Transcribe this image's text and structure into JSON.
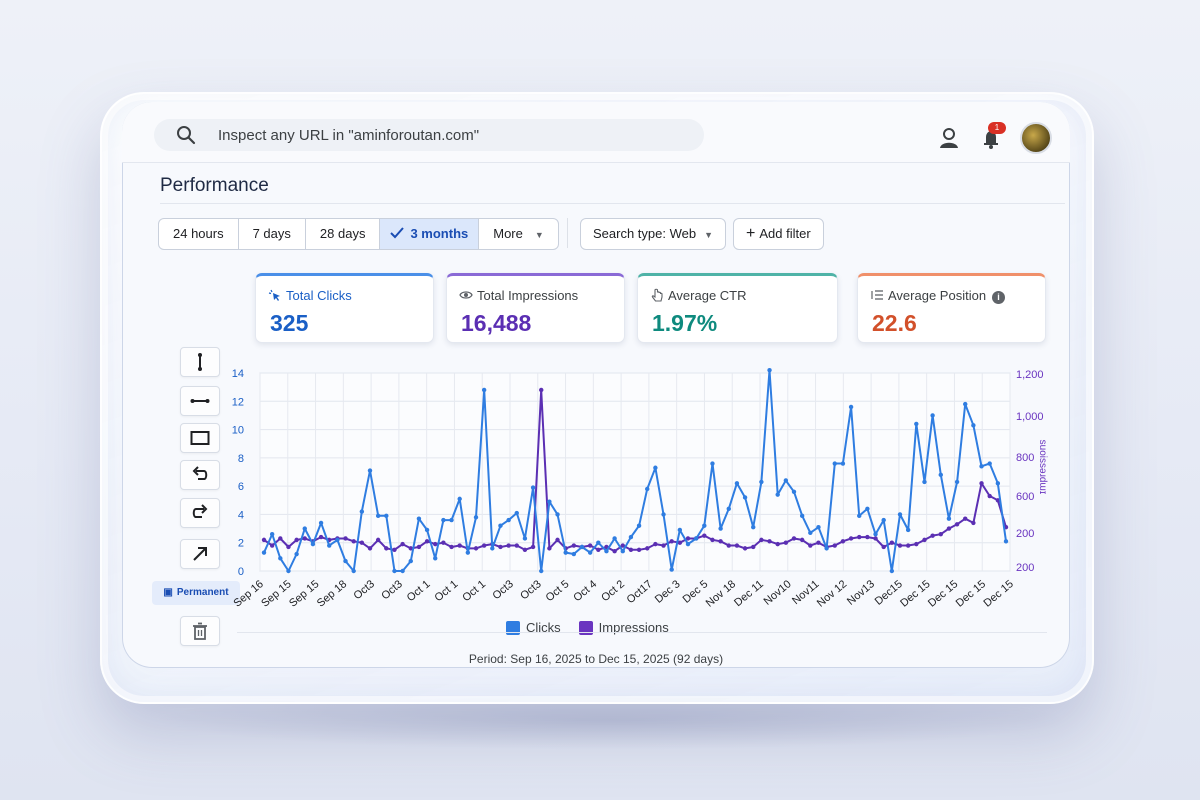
{
  "search": {
    "placeholder": "Inspect any URL in \"aminforoutan.com\""
  },
  "header": {
    "notification_count": "1"
  },
  "page": {
    "title": "Performance"
  },
  "date_range": {
    "options": [
      "24 hours",
      "7 days",
      "28 days",
      "3 months",
      "More"
    ],
    "selected": "3 months"
  },
  "filters": {
    "search_type": "Search type: Web",
    "add_filter": "Add filter"
  },
  "metrics": [
    {
      "label": "Total Clicks",
      "value": "325",
      "color": "#1a5fc6"
    },
    {
      "label": "Total Impressions",
      "value": "16,488",
      "color": "#5b2fb3"
    },
    {
      "label": "Average CTR",
      "value": "1.97%",
      "color": "#0e8a7e"
    },
    {
      "label": "Average Position",
      "value": "22.6",
      "color": "#d2502a"
    }
  ],
  "tools": {
    "permanent_label": "Permanent"
  },
  "chart_data": {
    "type": "line",
    "x_tick_labels": [
      "Sep 16",
      "Sep 15",
      "Sep 15",
      "Sep 18",
      "Oct3",
      "Oct3",
      "Oct 1",
      "Oct 1",
      "Oct 1",
      "Oct3",
      "Oct3",
      "Oct 5",
      "Oct 4",
      "Oct 2",
      "Oct17",
      "Dec 3",
      "Dec 5",
      "Nov 18",
      "Dec 11",
      "Nov10",
      "Nov11",
      "Nov 12",
      "Nov13",
      "Dec15",
      "Dec 15",
      "Dec 15",
      "Dec 15",
      "Dec 15"
    ],
    "y_left": {
      "ticks": [
        0,
        2,
        4,
        6,
        8,
        10,
        12,
        14
      ],
      "range": [
        0,
        14
      ]
    },
    "y_right": {
      "label": "suoissəɹdɯɪ",
      "ticks": [
        "200",
        "200",
        "600",
        "800",
        "1,000",
        "1,200"
      ]
    },
    "grid": true,
    "legend": "bottom-center",
    "series": [
      {
        "name": "Clicks",
        "color": "#2f7de1",
        "axis": "left",
        "values": [
          1.3,
          2.6,
          0.9,
          0,
          1.2,
          3.0,
          1.9,
          3.4,
          1.8,
          2.2,
          0.7,
          0,
          4.2,
          7.1,
          3.9,
          3.9,
          0,
          0,
          0.7,
          3.7,
          2.9,
          0.9,
          3.6,
          3.6,
          5.1,
          1.3,
          3.8,
          12.8,
          1.6,
          3.2,
          3.6,
          4.1,
          2.3,
          5.9,
          0,
          4.9,
          4.0,
          1.3,
          1.2,
          1.7,
          1.3,
          2.0,
          1.4,
          2.3,
          1.4,
          2.4,
          3.2,
          5.8,
          7.3,
          4.0,
          0.1,
          2.9,
          1.9,
          2.3,
          3.2,
          7.6,
          3.0,
          4.4,
          6.2,
          5.2,
          3.1,
          6.3,
          14.2,
          5.4,
          6.4,
          5.6,
          3.9,
          2.7,
          3.1,
          1.6,
          7.6,
          7.6,
          11.6,
          3.9,
          4.4,
          2.6,
          3.6,
          0,
          4.0,
          2.9,
          10.4,
          6.3,
          11.0,
          6.8,
          3.7,
          6.3,
          11.8,
          10.3,
          7.4,
          7.6,
          6.2,
          2.1
        ],
        "note": "values read approximately from the chart"
      },
      {
        "name": "Impressions",
        "color": "#5b2fb3",
        "axis": "left",
        "values": [
          2.2,
          1.8,
          2.3,
          1.7,
          2.2,
          2.3,
          2.1,
          2.4,
          2.2,
          2.3,
          2.3,
          2.1,
          2.0,
          1.6,
          2.2,
          1.6,
          1.5,
          1.9,
          1.6,
          1.7,
          2.1,
          1.9,
          2.0,
          1.7,
          1.8,
          1.6,
          1.6,
          1.8,
          1.9,
          1.7,
          1.8,
          1.8,
          1.5,
          1.7,
          12.8,
          1.6,
          2.2,
          1.6,
          1.8,
          1.7,
          1.8,
          1.5,
          1.7,
          1.4,
          1.8,
          1.5,
          1.5,
          1.6,
          1.9,
          1.8,
          2.1,
          2.0,
          2.3,
          2.3,
          2.5,
          2.2,
          2.1,
          1.8,
          1.8,
          1.6,
          1.7,
          2.2,
          2.1,
          1.9,
          2.0,
          2.3,
          2.2,
          1.8,
          2.0,
          1.7,
          1.8,
          2.1,
          2.3,
          2.4,
          2.4,
          2.3,
          1.7,
          2.0,
          1.8,
          1.8,
          1.9,
          2.2,
          2.5,
          2.6,
          3.0,
          3.3,
          3.7,
          3.4,
          6.2,
          5.3,
          5.0,
          3.1
        ]
      }
    ]
  },
  "footer": {
    "period": "Period: Sep 16, 2025 to Dec 15, 2025 (92 days)"
  }
}
